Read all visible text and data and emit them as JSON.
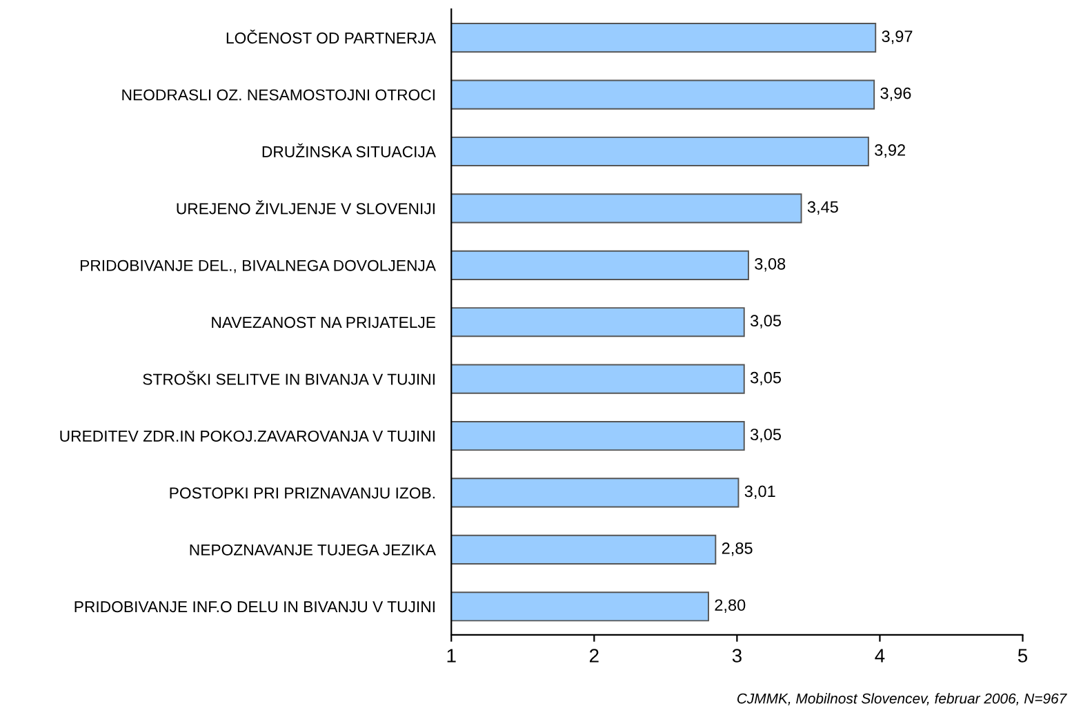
{
  "chart_data": {
    "type": "bar",
    "orientation": "horizontal",
    "categories": [
      "LOČENOST OD PARTNERJA",
      "NEODRASLI OZ. NESAMOSTOJNI OTROCI",
      "DRUŽINSKA SITUACIJA",
      "UREJENO ŽIVLJENJE V SLOVENIJI",
      "PRIDOBIVANJE DEL., BIVALNEGA DOVOLJENJA",
      "NAVEZANOST NA PRIJATELJE",
      "STROŠKI SELITVE IN BIVANJA V TUJINI",
      "UREDITEV ZDR.IN POKOJ.ZAVAROVANJA V TUJINI",
      "POSTOPKI PRI PRIZNAVANJU IZOB.",
      "NEPOZNAVANJE TUJEGA JEZIKA",
      "PRIDOBIVANJE INF.O DELU IN BIVANJU V TUJINI"
    ],
    "values": [
      3.97,
      3.96,
      3.92,
      3.45,
      3.08,
      3.05,
      3.05,
      3.05,
      3.01,
      2.85,
      2.8
    ],
    "value_labels": [
      "3,97",
      "3,96",
      "3,92",
      "3,45",
      "3,08",
      "3,05",
      "3,05",
      "3,05",
      "3,01",
      "2,85",
      "2,80"
    ],
    "color": "#99ccff",
    "xlim": [
      1,
      5
    ],
    "xticks": [
      1,
      2,
      3,
      4,
      5
    ],
    "grid": false,
    "legend": false,
    "annotations": [
      "CJMMK, Mobilnost Slovencev, februar 2006, N=967"
    ]
  }
}
